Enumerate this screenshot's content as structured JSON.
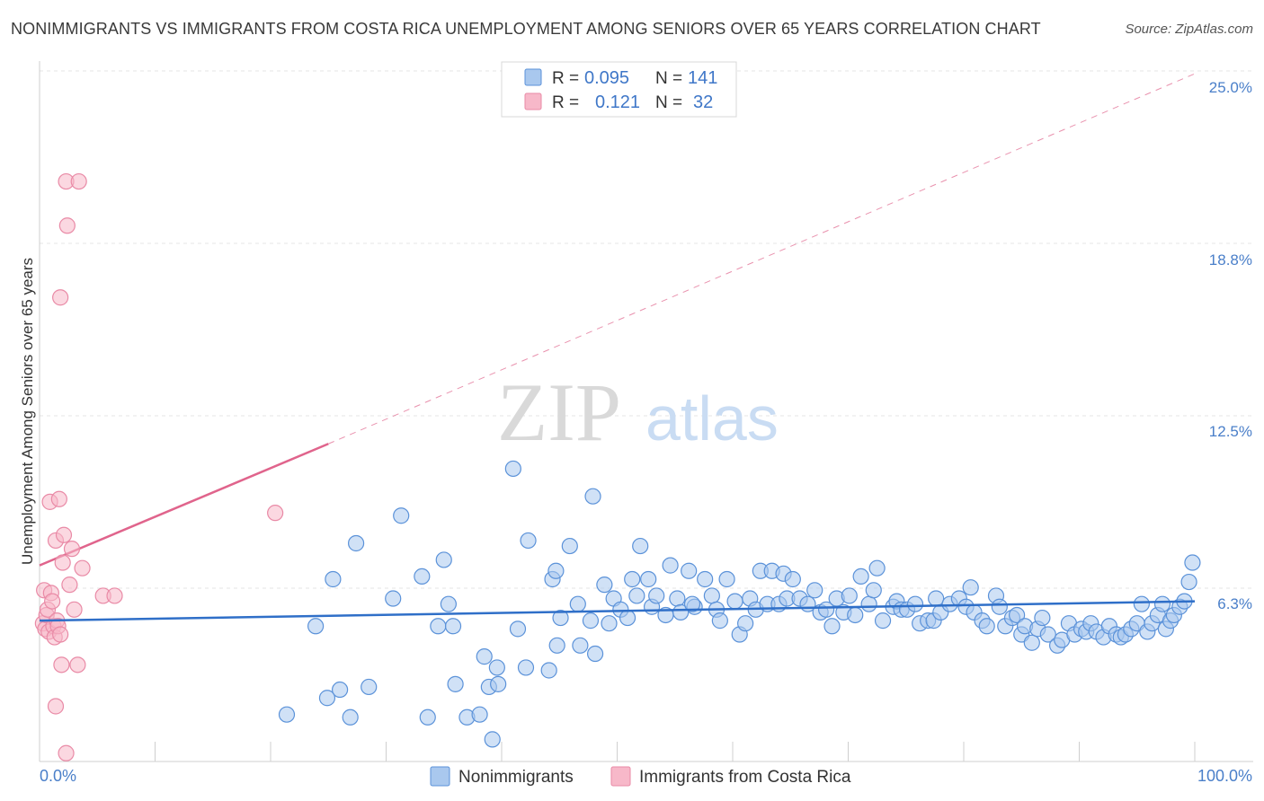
{
  "title": "NONIMMIGRANTS VS IMMIGRANTS FROM COSTA RICA UNEMPLOYMENT AMONG SENIORS OVER 65 YEARS CORRELATION CHART",
  "source": "Source: ZipAtlas.com",
  "watermark": {
    "zip": "ZIP",
    "atlas": "atlas"
  },
  "colors": {
    "blue_fill": "#a9c8ee",
    "blue_stroke": "#5b92d9",
    "blue_line": "#2f6fc8",
    "pink_fill": "#f7b8c9",
    "pink_stroke": "#e98aa6",
    "pink_line": "#e0648c",
    "axis_text": "#4a7fc9",
    "grid": "#e2e2e2"
  },
  "stats": {
    "r_label": "R =",
    "n_label": "N =",
    "series": [
      {
        "r": "0.095",
        "n": "141"
      },
      {
        "r": "0.121",
        "n": "32"
      }
    ]
  },
  "legend": [
    "Nonimmigrants",
    "Immigrants from Costa Rica"
  ],
  "chart_data": {
    "type": "scatter",
    "title": "NONIMMIGRANTS VS IMMIGRANTS FROM COSTA RICA UNEMPLOYMENT AMONG SENIORS OVER 65 YEARS CORRELATION CHART",
    "xlabel": "",
    "ylabel": "Unemployment Among Seniors over 65 years",
    "xlim": [
      0,
      100
    ],
    "ylim": [
      0,
      25.8
    ],
    "x_tick_labels": [
      "0.0%",
      "100.0%"
    ],
    "y_ticks": [
      6.3,
      12.5,
      18.8,
      25.0
    ],
    "y_tick_labels": [
      "6.3%",
      "12.5%",
      "18.8%",
      "25.0%"
    ],
    "grid": true,
    "legend_position": "bottom",
    "series": [
      {
        "name": "Nonimmigrants",
        "r": 0.095,
        "n": 141,
        "trend": {
          "x0": 0,
          "y0": 5.1,
          "x1": 100,
          "y1": 5.8
        },
        "points": [
          [
            21.4,
            1.7
          ],
          [
            23.9,
            4.9
          ],
          [
            25.4,
            6.6
          ],
          [
            24.9,
            2.3
          ],
          [
            26.0,
            2.6
          ],
          [
            26.9,
            1.6
          ],
          [
            27.4,
            7.9
          ],
          [
            28.5,
            2.7
          ],
          [
            30.6,
            5.9
          ],
          [
            31.3,
            8.9
          ],
          [
            33.1,
            6.7
          ],
          [
            33.6,
            1.6
          ],
          [
            34.5,
            4.9
          ],
          [
            35.0,
            7.3
          ],
          [
            35.4,
            5.7
          ],
          [
            35.8,
            4.9
          ],
          [
            36.0,
            2.8
          ],
          [
            37.0,
            1.6
          ],
          [
            38.1,
            1.7
          ],
          [
            38.5,
            3.8
          ],
          [
            38.9,
            2.7
          ],
          [
            39.2,
            0.8
          ],
          [
            39.6,
            3.4
          ],
          [
            39.7,
            2.8
          ],
          [
            41.0,
            10.6
          ],
          [
            41.4,
            4.8
          ],
          [
            42.1,
            3.4
          ],
          [
            42.3,
            8.0
          ],
          [
            44.1,
            3.3
          ],
          [
            44.4,
            6.6
          ],
          [
            44.7,
            6.9
          ],
          [
            45.1,
            5.2
          ],
          [
            44.8,
            4.2
          ],
          [
            45.9,
            7.8
          ],
          [
            46.6,
            5.7
          ],
          [
            46.8,
            4.2
          ],
          [
            47.7,
            5.1
          ],
          [
            48.1,
            3.9
          ],
          [
            47.9,
            9.6
          ],
          [
            48.9,
            6.4
          ],
          [
            49.3,
            5.0
          ],
          [
            49.7,
            5.9
          ],
          [
            50.3,
            5.5
          ],
          [
            50.9,
            5.2
          ],
          [
            51.3,
            6.6
          ],
          [
            51.7,
            6.0
          ],
          [
            52.0,
            7.8
          ],
          [
            52.7,
            6.6
          ],
          [
            53.0,
            5.6
          ],
          [
            53.4,
            6.0
          ],
          [
            54.2,
            5.3
          ],
          [
            54.6,
            7.1
          ],
          [
            55.2,
            5.9
          ],
          [
            55.5,
            5.4
          ],
          [
            56.2,
            6.9
          ],
          [
            56.7,
            5.6
          ],
          [
            56.5,
            5.7
          ],
          [
            57.6,
            6.6
          ],
          [
            58.2,
            6.0
          ],
          [
            58.6,
            5.5
          ],
          [
            58.9,
            5.1
          ],
          [
            59.5,
            6.6
          ],
          [
            60.2,
            5.8
          ],
          [
            60.6,
            4.6
          ],
          [
            61.1,
            5.0
          ],
          [
            61.5,
            5.9
          ],
          [
            62.0,
            5.5
          ],
          [
            62.4,
            6.9
          ],
          [
            63.0,
            5.7
          ],
          [
            63.4,
            6.9
          ],
          [
            64.0,
            5.7
          ],
          [
            64.4,
            6.8
          ],
          [
            64.7,
            5.9
          ],
          [
            65.2,
            6.6
          ],
          [
            65.8,
            5.9
          ],
          [
            66.5,
            5.7
          ],
          [
            67.1,
            6.2
          ],
          [
            67.6,
            5.4
          ],
          [
            68.1,
            5.5
          ],
          [
            68.6,
            4.9
          ],
          [
            69.0,
            5.9
          ],
          [
            69.6,
            5.4
          ],
          [
            70.1,
            6.0
          ],
          [
            70.6,
            5.3
          ],
          [
            71.1,
            6.7
          ],
          [
            71.8,
            5.7
          ],
          [
            72.2,
            6.2
          ],
          [
            72.5,
            7.0
          ],
          [
            73.0,
            5.1
          ],
          [
            73.9,
            5.6
          ],
          [
            74.2,
            5.8
          ],
          [
            74.6,
            5.5
          ],
          [
            75.1,
            5.5
          ],
          [
            75.8,
            5.7
          ],
          [
            76.2,
            5.0
          ],
          [
            76.9,
            5.1
          ],
          [
            77.4,
            5.1
          ],
          [
            77.6,
            5.9
          ],
          [
            78.0,
            5.4
          ],
          [
            78.8,
            5.7
          ],
          [
            79.6,
            5.9
          ],
          [
            80.2,
            5.6
          ],
          [
            80.6,
            6.3
          ],
          [
            80.9,
            5.4
          ],
          [
            81.6,
            5.1
          ],
          [
            82.0,
            4.9
          ],
          [
            82.8,
            6.0
          ],
          [
            83.1,
            5.6
          ],
          [
            83.6,
            4.9
          ],
          [
            84.2,
            5.2
          ],
          [
            84.6,
            5.3
          ],
          [
            85.0,
            4.6
          ],
          [
            85.3,
            4.9
          ],
          [
            85.9,
            4.3
          ],
          [
            86.4,
            4.8
          ],
          [
            86.8,
            5.2
          ],
          [
            87.3,
            4.6
          ],
          [
            88.1,
            4.2
          ],
          [
            88.5,
            4.4
          ],
          [
            89.1,
            5.0
          ],
          [
            89.6,
            4.6
          ],
          [
            90.2,
            4.8
          ],
          [
            90.6,
            4.7
          ],
          [
            91.0,
            5.0
          ],
          [
            91.5,
            4.7
          ],
          [
            92.1,
            4.5
          ],
          [
            92.6,
            4.9
          ],
          [
            93.2,
            4.6
          ],
          [
            93.6,
            4.5
          ],
          [
            94.0,
            4.6
          ],
          [
            94.5,
            4.8
          ],
          [
            95.0,
            5.0
          ],
          [
            95.4,
            5.7
          ],
          [
            95.9,
            4.7
          ],
          [
            96.3,
            5.0
          ],
          [
            96.8,
            5.3
          ],
          [
            97.2,
            5.7
          ],
          [
            97.5,
            4.8
          ],
          [
            97.9,
            5.1
          ],
          [
            98.2,
            5.3
          ],
          [
            98.7,
            5.6
          ],
          [
            99.1,
            5.8
          ],
          [
            99.5,
            6.5
          ],
          [
            99.8,
            7.2
          ]
        ]
      },
      {
        "name": "Immigrants from Costa Rica",
        "r": 0.121,
        "n": 32,
        "trend": {
          "x0": 0,
          "y0": 7.1,
          "x1": 25,
          "y1": 11.5
        },
        "trend_extended": {
          "x0": 25,
          "y0": 11.5,
          "x1": 100,
          "y1": 24.9
        },
        "points": [
          [
            0.3,
            5.0
          ],
          [
            0.4,
            6.2
          ],
          [
            0.5,
            4.8
          ],
          [
            0.6,
            5.3
          ],
          [
            0.7,
            5.5
          ],
          [
            0.8,
            4.7
          ],
          [
            0.9,
            9.4
          ],
          [
            1.0,
            6.1
          ],
          [
            1.1,
            5.8
          ],
          [
            1.2,
            4.9
          ],
          [
            1.3,
            4.5
          ],
          [
            1.4,
            2.0
          ],
          [
            1.4,
            8.0
          ],
          [
            1.5,
            5.1
          ],
          [
            1.6,
            4.9
          ],
          [
            1.7,
            9.5
          ],
          [
            1.8,
            16.8
          ],
          [
            1.8,
            4.6
          ],
          [
            1.9,
            3.5
          ],
          [
            2.0,
            7.2
          ],
          [
            2.1,
            8.2
          ],
          [
            2.3,
            0.3
          ],
          [
            2.3,
            21.0
          ],
          [
            2.4,
            19.4
          ],
          [
            2.6,
            6.4
          ],
          [
            2.8,
            7.7
          ],
          [
            3.0,
            5.5
          ],
          [
            3.3,
            3.5
          ],
          [
            3.4,
            21.0
          ],
          [
            3.7,
            7.0
          ],
          [
            5.5,
            6.0
          ],
          [
            6.5,
            6.0
          ],
          [
            20.4,
            9.0
          ]
        ]
      }
    ]
  }
}
